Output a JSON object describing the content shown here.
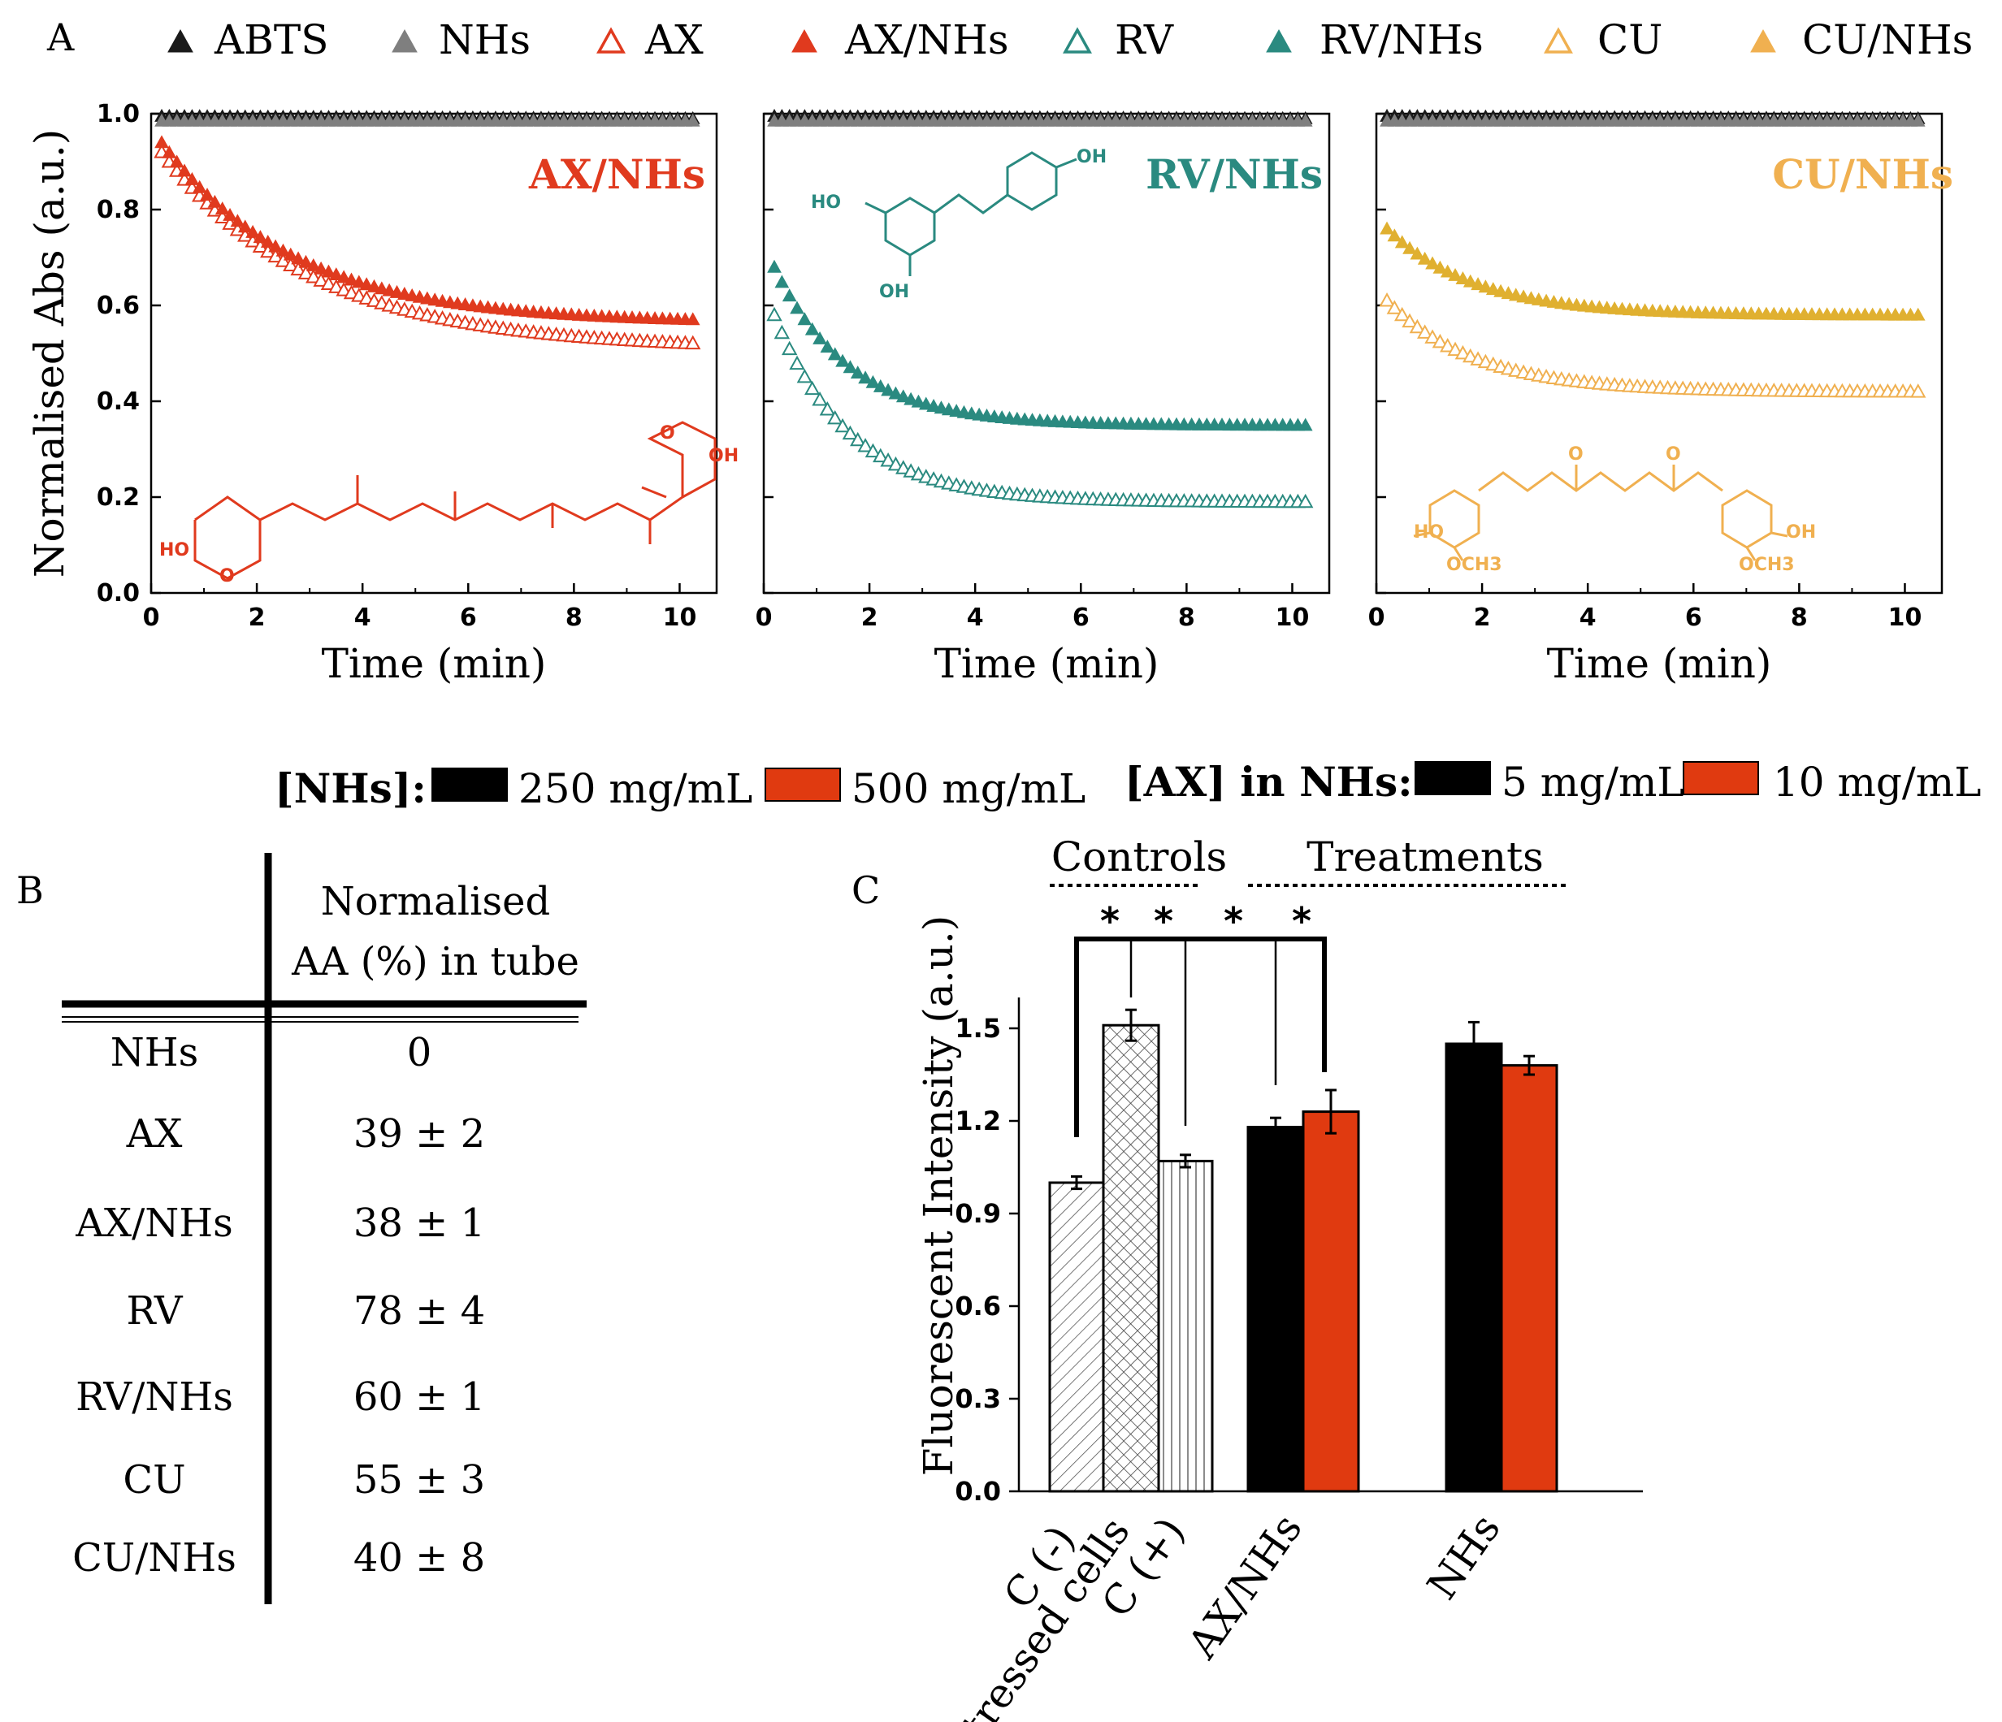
{
  "panel_labels": {
    "a": "A",
    "b": "B",
    "c": "C"
  },
  "legend_a": [
    {
      "label": "ABTS",
      "marker": "filled",
      "color": "#1a1a1a"
    },
    {
      "label": "NHs",
      "marker": "filled",
      "color": "#7f7f7f"
    },
    {
      "label": "AX",
      "marker": "open",
      "color": "#e03a1e"
    },
    {
      "label": "AX/NHs",
      "marker": "filled",
      "color": "#e03a1e"
    },
    {
      "label": "RV",
      "marker": "open",
      "color": "#2a8a80"
    },
    {
      "label": "RV/NHs",
      "marker": "filled",
      "color": "#2a8a80"
    },
    {
      "label": "CU",
      "marker": "open",
      "color": "#f0b050"
    },
    {
      "label": "CU/NHs",
      "marker": "filled",
      "color": "#f0b050"
    }
  ],
  "chart_data": [
    {
      "type": "scatter",
      "panel": "A-1",
      "title": "AX/NHs",
      "title_color": "#e03a1e",
      "xlabel": "Time (min)",
      "ylabel": "Normalised Abs (a.u.)",
      "xlim": [
        0,
        10.7
      ],
      "ylim": [
        0,
        1.0
      ],
      "xticks": [
        "0",
        "2",
        "4",
        "6",
        "8",
        "10"
      ],
      "yticks": [
        "0.0",
        "0.2",
        "0.4",
        "0.6",
        "0.8",
        "1.0"
      ],
      "molecule_labels": {
        "oh": "OH",
        "ho": "HO",
        "o": "O"
      },
      "series": [
        {
          "name": "ABTS",
          "color": "#1a1a1a",
          "marker": "filled",
          "y0": 0.995,
          "y_end": 0.99,
          "k": 0.1
        },
        {
          "name": "NHs",
          "color": "#7f7f7f",
          "marker": "filled",
          "y0": 0.985,
          "y_end": 0.985,
          "k": 0.1
        },
        {
          "name": "AX",
          "color": "#e03a1e",
          "marker": "open",
          "y0": 0.92,
          "y_end": 0.52,
          "k": 0.35
        },
        {
          "name": "AX/NHs",
          "color": "#e03a1e",
          "marker": "filled",
          "y0": 0.94,
          "y_end": 0.57,
          "k": 0.4
        }
      ]
    },
    {
      "type": "scatter",
      "panel": "A-2",
      "title": "RV/NHs",
      "title_color": "#2a8a80",
      "xlabel": "Time (min)",
      "xlim": [
        0,
        10.7
      ],
      "ylim": [
        0,
        1.0
      ],
      "xticks": [
        "0",
        "2",
        "4",
        "6",
        "8",
        "10"
      ],
      "molecule_labels": {
        "oh": "OH",
        "ho": "HO"
      },
      "series": [
        {
          "name": "ABTS",
          "color": "#1a1a1a",
          "marker": "filled",
          "y0": 0.995,
          "y_end": 0.99,
          "k": 0.1
        },
        {
          "name": "NHs",
          "color": "#7f7f7f",
          "marker": "filled",
          "y0": 0.985,
          "y_end": 0.985,
          "k": 0.1
        },
        {
          "name": "RV",
          "color": "#2a8a80",
          "marker": "open",
          "y0": 0.58,
          "y_end": 0.19,
          "k": 0.7
        },
        {
          "name": "RV/NHs",
          "color": "#2a8a80",
          "marker": "filled",
          "y0": 0.68,
          "y_end": 0.35,
          "k": 0.7
        }
      ]
    },
    {
      "type": "scatter",
      "panel": "A-3",
      "title": "CU/NHs",
      "title_color": "#f0b050",
      "xlabel": "Time (min)",
      "xlim": [
        0,
        10.7
      ],
      "ylim": [
        0,
        1.0
      ],
      "xticks": [
        "0",
        "2",
        "4",
        "6",
        "8",
        "10"
      ],
      "molecule_labels": {
        "oh": "OH",
        "ho": "HO",
        "o": "O",
        "och3": "OCH3"
      },
      "series": [
        {
          "name": "ABTS",
          "color": "#1a1a1a",
          "marker": "filled",
          "y0": 0.995,
          "y_end": 0.99,
          "k": 0.1
        },
        {
          "name": "NHs",
          "color": "#7f7f7f",
          "marker": "filled",
          "y0": 0.985,
          "y_end": 0.985,
          "k": 0.1
        },
        {
          "name": "CU",
          "color": "#f0b050",
          "marker": "open",
          "y0": 0.61,
          "y_end": 0.42,
          "k": 0.6
        },
        {
          "name": "CU/NHs",
          "color": "#e0b030",
          "marker": "filled",
          "y0": 0.76,
          "y_end": 0.58,
          "k": 0.6
        }
      ]
    },
    {
      "type": "bar",
      "panel": "C",
      "ylabel": "Fluorescent Intensity (a.u.)",
      "ylim": [
        0,
        1.6
      ],
      "yticks": [
        "0.0",
        "0.3",
        "0.6",
        "0.9",
        "1.2",
        "1.5"
      ],
      "ytick_values": [
        0,
        0.3,
        0.6,
        0.9,
        1.2,
        1.5
      ],
      "group_labels": [
        "Controls",
        "Treatments"
      ],
      "categories": [
        "C (-)",
        "Stressed cells",
        "C (+)",
        "AX/NHs",
        "NHs"
      ],
      "bars": [
        {
          "category": "C (-)",
          "value": 1.0,
          "error": 0.02,
          "fill": "hatch-diag"
        },
        {
          "category": "Stressed cells",
          "value": 1.51,
          "error": 0.05,
          "fill": "hatch-cross"
        },
        {
          "category": "C (+)",
          "value": 1.07,
          "error": 0.02,
          "fill": "hatch-vert"
        },
        {
          "category": "AX/NHs",
          "series": "5 mg/mL",
          "value": 1.18,
          "error": 0.03,
          "fill": "#000000"
        },
        {
          "category": "AX/NHs",
          "series": "10 mg/mL",
          "value": 1.23,
          "error": 0.07,
          "fill": "#e03a10"
        },
        {
          "category": "NHs",
          "series": "250 mg/mL",
          "value": 1.45,
          "error": 0.07,
          "fill": "#000000"
        },
        {
          "category": "NHs",
          "series": "500 mg/mL",
          "value": 1.38,
          "error": 0.03,
          "fill": "#e03a10"
        }
      ],
      "significance": [
        "*",
        "*",
        "*",
        "*"
      ],
      "legend": {
        "nhs_title": "[NHs]:",
        "nhs_items": [
          {
            "label": "250 mg/mL",
            "color": "#000000"
          },
          {
            "label": "500 mg/mL",
            "color": "#e03a10"
          }
        ],
        "ax_title": "[AX] in NHs:",
        "ax_items": [
          {
            "label": "5 mg/mL",
            "color": "#000000"
          },
          {
            "label": "10 mg/mL",
            "color": "#e03a10"
          }
        ]
      }
    }
  ],
  "table_b": {
    "header_line1": "Normalised",
    "header_line2": "AA (%) in tube",
    "rows": [
      {
        "label": "NHs",
        "value": "0"
      },
      {
        "label": "AX",
        "value": "39 ± 2"
      },
      {
        "label": "AX/NHs",
        "value": "38 ± 1"
      },
      {
        "label": "RV",
        "value": "78 ± 4"
      },
      {
        "label": "RV/NHs",
        "value": "60 ± 1"
      },
      {
        "label": "CU",
        "value": "55 ± 3"
      },
      {
        "label": "CU/NHs",
        "value": "40 ± 8"
      }
    ]
  }
}
